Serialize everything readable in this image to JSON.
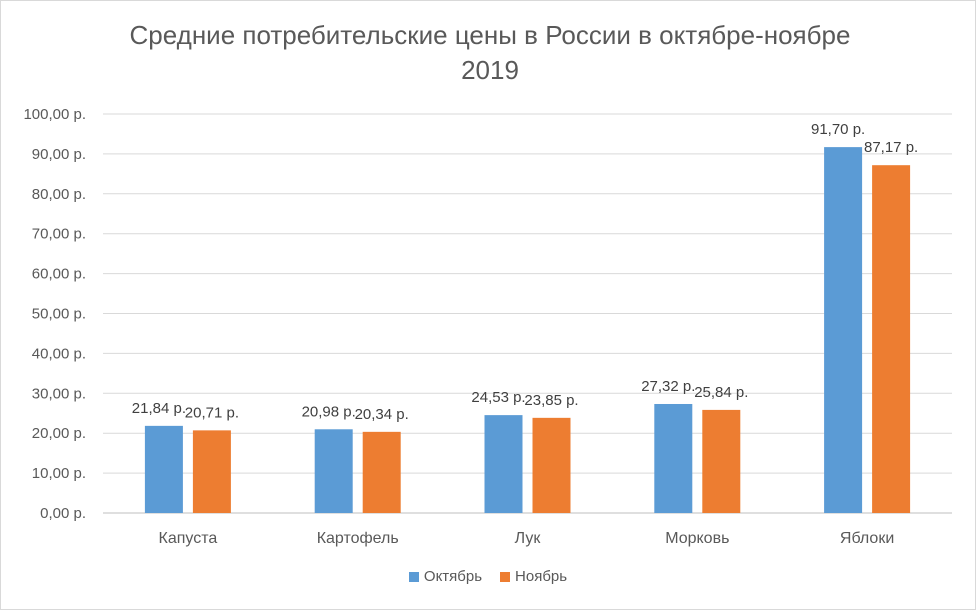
{
  "chart_data": {
    "type": "bar",
    "title": "Средние потребительские цены в России в октябре-ноябре 2019",
    "categories": [
      "Капуста",
      "Картофель",
      "Лук",
      "Морковь",
      "Яблоки"
    ],
    "series": [
      {
        "name": "Октябрь",
        "color": "#5b9bd5",
        "values": [
          21.84,
          20.98,
          24.53,
          27.32,
          91.7
        ],
        "labels": [
          "21,84 р.",
          "20,98 р.",
          "24,53 р.",
          "27,32 р.",
          "91,70 р."
        ]
      },
      {
        "name": "Ноябрь",
        "color": "#ed7d31",
        "values": [
          20.71,
          20.34,
          23.85,
          25.84,
          87.17
        ],
        "labels": [
          "20,71 р.",
          "20,34 р.",
          "23,85 р.",
          "25,84 р.",
          "87,17 р."
        ]
      }
    ],
    "ylim": [
      0,
      100
    ],
    "yticks": [
      0,
      10,
      20,
      30,
      40,
      50,
      60,
      70,
      80,
      90,
      100
    ],
    "ytick_labels": [
      "0,00 р.",
      "10,00 р.",
      "20,00 р.",
      "30,00 р.",
      "40,00 р.",
      "50,00 р.",
      "60,00 р.",
      "70,00 р.",
      "80,00 р.",
      "90,00 р.",
      "100,00 р."
    ],
    "grid": true,
    "legend_position": "bottom"
  }
}
